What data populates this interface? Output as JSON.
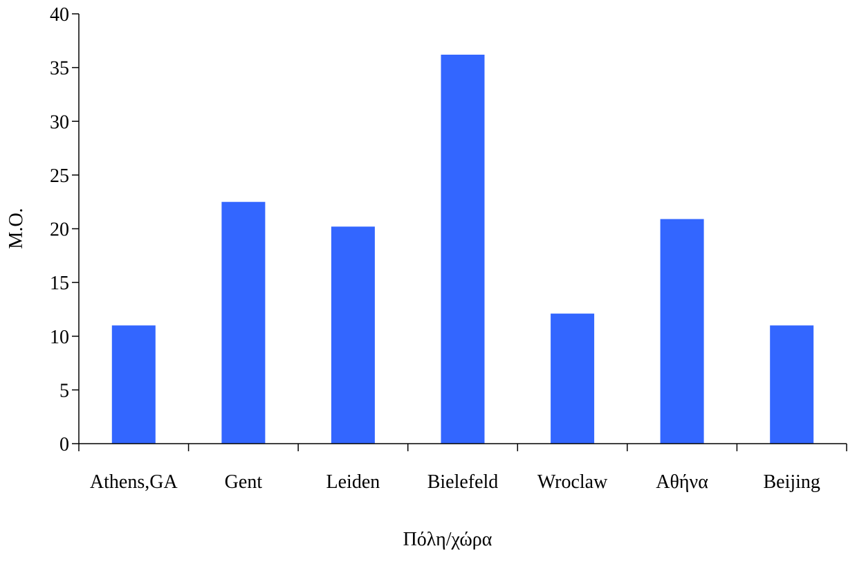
{
  "chart_data": {
    "type": "bar",
    "categories": [
      "Athens,GA",
      "Gent",
      "Leiden",
      "Bielefeld",
      "Wroclaw",
      "Αθήνα",
      "Beijing"
    ],
    "values": [
      11,
      22.5,
      20.2,
      36.2,
      12.1,
      20.9,
      11
    ],
    "title": "",
    "xlabel": "Πόλη/χώρα",
    "ylabel": "Μ.Ο.",
    "ylim": [
      0,
      40
    ],
    "yticks": [
      0,
      5,
      10,
      15,
      20,
      25,
      30,
      35,
      40
    ],
    "grid": false,
    "legend": "none",
    "bar_color": "#3366ff",
    "axis_color": "#000000"
  }
}
